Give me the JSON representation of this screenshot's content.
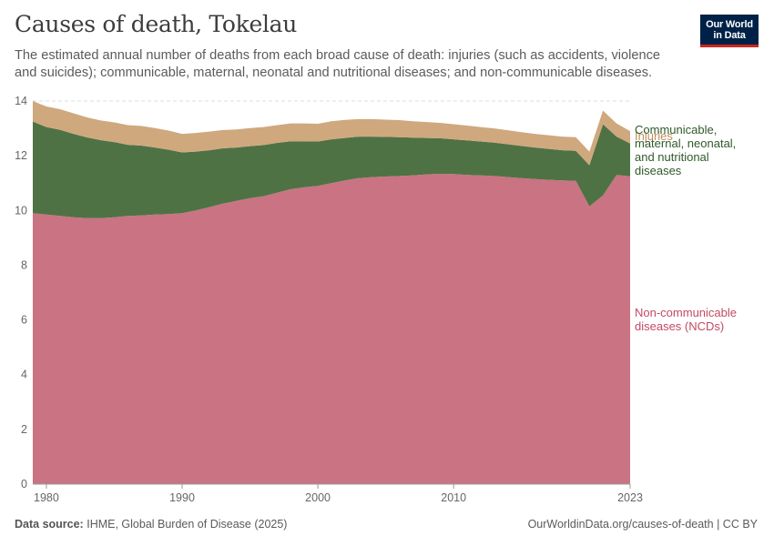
{
  "header": {
    "title": "Causes of death, Tokelau",
    "subtitle": "The estimated annual number of deaths from each broad cause of death: injuries (such as accidents, violence and suicides); communicable, maternal, neonatal and nutritional diseases; and non-communicable diseases."
  },
  "logo": {
    "line1": "Our World",
    "line2": "in Data"
  },
  "footer": {
    "source_label": "Data source:",
    "source_text": "IHME, Global Burden of Disease (2025)",
    "url": "OurWorldinData.org/causes-of-death | CC BY"
  },
  "colors": {
    "ncd": "#ca7382",
    "cmnn": "#4f7245",
    "injuries": "#cfa87e",
    "grid": "#dddddd"
  },
  "chart_data": {
    "type": "area",
    "stacked": true,
    "title": "Causes of death, Tokelau",
    "xlabel": "",
    "ylabel": "",
    "xlim": [
      1979,
      2023
    ],
    "ylim": [
      0,
      14
    ],
    "grid": true,
    "x_ticks": [
      1980,
      1990,
      2000,
      2010,
      2023
    ],
    "y_ticks": [
      0,
      2,
      4,
      6,
      8,
      10,
      12,
      14
    ],
    "x": [
      1979,
      1980,
      1981,
      1982,
      1983,
      1984,
      1985,
      1986,
      1987,
      1988,
      1989,
      1990,
      1991,
      1992,
      1993,
      1994,
      1995,
      1996,
      1997,
      1998,
      1999,
      2000,
      2001,
      2002,
      2003,
      2004,
      2005,
      2006,
      2007,
      2008,
      2009,
      2010,
      2011,
      2012,
      2013,
      2014,
      2015,
      2016,
      2017,
      2018,
      2019,
      2020,
      2021,
      2022,
      2023
    ],
    "series": [
      {
        "name": "Non-communicable diseases (NCDs)",
        "label_lines": [
          "Non-communicable",
          "diseases (NCDs)"
        ],
        "color": "#ca7382",
        "values": [
          9.9,
          9.85,
          9.8,
          9.75,
          9.72,
          9.72,
          9.75,
          9.8,
          9.82,
          9.85,
          9.87,
          9.9,
          10.0,
          10.12,
          10.25,
          10.35,
          10.45,
          10.52,
          10.65,
          10.78,
          10.85,
          10.9,
          11.0,
          11.1,
          11.18,
          11.22,
          11.24,
          11.26,
          11.28,
          11.32,
          11.34,
          11.33,
          11.3,
          11.28,
          11.26,
          11.22,
          11.18,
          11.15,
          11.12,
          11.1,
          11.08,
          10.15,
          10.55,
          11.3,
          11.25
        ]
      },
      {
        "name": "Communicable, maternal, neonatal, and nutritional diseases",
        "label_lines": [
          "Communicable,",
          "maternal, neonatal,",
          "and nutritional",
          "diseases"
        ],
        "color": "#4f7245",
        "values": [
          3.35,
          3.2,
          3.15,
          3.05,
          2.95,
          2.85,
          2.75,
          2.6,
          2.55,
          2.45,
          2.35,
          2.22,
          2.15,
          2.08,
          2.02,
          1.95,
          1.9,
          1.87,
          1.82,
          1.75,
          1.68,
          1.62,
          1.6,
          1.55,
          1.52,
          1.48,
          1.45,
          1.42,
          1.38,
          1.33,
          1.3,
          1.27,
          1.26,
          1.24,
          1.22,
          1.2,
          1.18,
          1.15,
          1.13,
          1.1,
          1.1,
          1.5,
          2.6,
          1.4,
          1.2
        ]
      },
      {
        "name": "Injuries",
        "label_lines": [
          "Injuries"
        ],
        "color": "#cfa87e",
        "values": [
          0.75,
          0.75,
          0.75,
          0.75,
          0.73,
          0.72,
          0.72,
          0.72,
          0.72,
          0.71,
          0.7,
          0.68,
          0.68,
          0.68,
          0.67,
          0.66,
          0.66,
          0.66,
          0.65,
          0.65,
          0.65,
          0.65,
          0.66,
          0.66,
          0.64,
          0.64,
          0.63,
          0.62,
          0.6,
          0.58,
          0.56,
          0.55,
          0.54,
          0.53,
          0.52,
          0.51,
          0.5,
          0.5,
          0.5,
          0.5,
          0.5,
          0.5,
          0.5,
          0.48,
          0.45
        ]
      }
    ]
  }
}
